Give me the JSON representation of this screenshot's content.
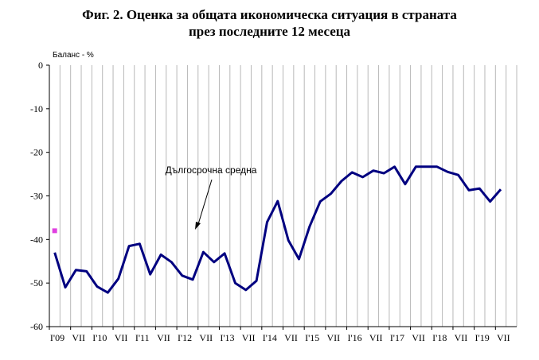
{
  "chart_data": {
    "type": "line",
    "title_line1": "Фиг. 2. Оценка за общата икономическа ситуация в страната",
    "title_line2": "през последните 12 месеца",
    "ylabel": "Баланс - %",
    "ylim": [
      -60,
      0
    ],
    "yticks": [
      0,
      -10,
      -20,
      -30,
      -40,
      -50,
      -60
    ],
    "grid": "vertical",
    "x_tick_labels": [
      "I'09",
      "VII",
      "I'10",
      "VII",
      "I'11",
      "VII",
      "I'12",
      "VII",
      "I'13",
      "VII",
      "I'14",
      "VII",
      "I'15",
      "VII",
      "I'16",
      "VII",
      "I'17",
      "VII",
      "I'18",
      "VII",
      "I'19",
      "VII"
    ],
    "series": [
      {
        "name": "",
        "color": "#000080",
        "x": [
          0,
          1,
          2,
          3,
          4,
          5,
          6,
          7,
          8,
          9,
          10,
          11,
          12,
          13,
          14,
          15,
          16,
          17,
          18,
          19,
          20,
          21,
          22,
          23,
          24,
          25,
          26,
          27,
          28,
          29,
          30,
          31,
          32,
          33,
          34,
          35,
          36,
          37,
          38,
          39,
          40,
          41,
          42,
          43
        ],
        "values": [
          -43,
          -51,
          -47,
          -47.3,
          -50.8,
          -52.2,
          -49,
          -41.5,
          -41,
          -48,
          -43.5,
          -45.2,
          -48.3,
          -49.2,
          -42.9,
          -45.2,
          -43.2,
          -50,
          -51.6,
          -49.5,
          -36,
          -31.2,
          -40.2,
          -44.5,
          -37,
          -31.3,
          -29.5,
          -26.6,
          -24.6,
          -25.7,
          -24.2,
          -24.8,
          -23.3,
          -27.3,
          -23.3,
          -23.3,
          -23.3,
          -24.5,
          -25.2,
          -28.7,
          -28.3,
          -31.3,
          -28.5,
          null
        ]
      }
    ],
    "long_term_average": {
      "label": "Дългосрочна средна",
      "x": 0,
      "value": -38
    }
  }
}
